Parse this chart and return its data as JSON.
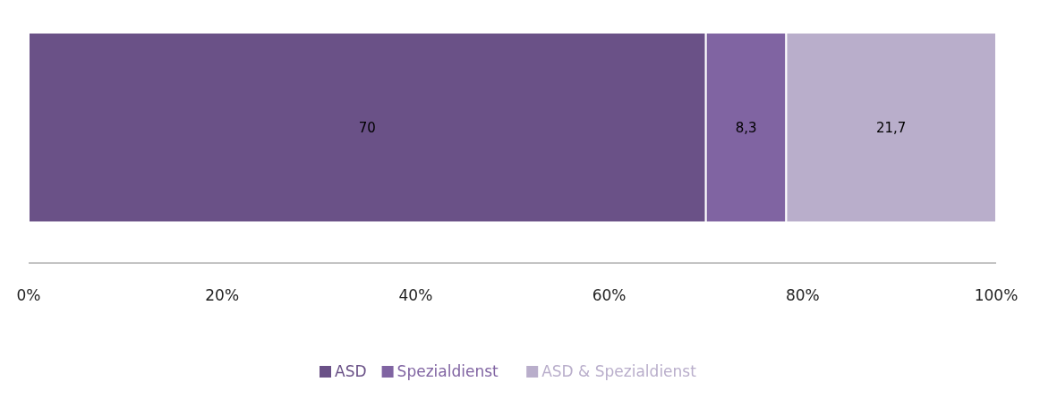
{
  "chart_data": {
    "type": "bar",
    "orientation": "horizontal",
    "stacked": true,
    "categories": [
      null
    ],
    "series": [
      {
        "name": "ASD",
        "color": "#6a5187",
        "values": [
          70
        ],
        "value_labels": [
          "70"
        ]
      },
      {
        "name": "Spezialdienst",
        "color": "#8064a2",
        "values": [
          8.3
        ],
        "value_labels": [
          "8,3"
        ]
      },
      {
        "name": "ASD & Spezialdienst",
        "color": "#b9aecb",
        "values": [
          21.7
        ],
        "value_labels": [
          "21,7"
        ]
      }
    ],
    "xlim": [
      0,
      100
    ],
    "xticks": [
      {
        "value": 0,
        "label": "0%"
      },
      {
        "value": 20,
        "label": "20%"
      },
      {
        "value": 40,
        "label": "40%"
      },
      {
        "value": 60,
        "label": "60%"
      },
      {
        "value": 80,
        "label": "80%"
      },
      {
        "value": 100,
        "label": "100%"
      }
    ],
    "grid": false,
    "legend": "bottom"
  }
}
